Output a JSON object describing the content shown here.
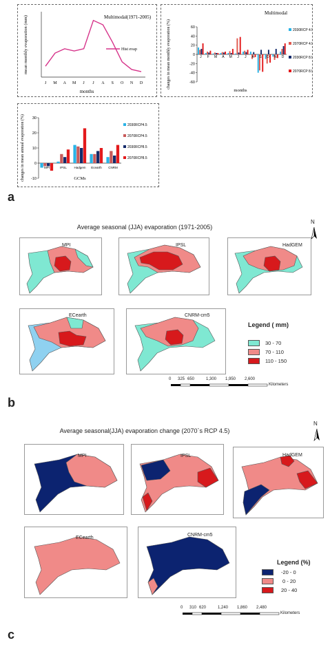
{
  "panels": {
    "a": {
      "letter": "a"
    },
    "b": {
      "letter": "b",
      "title": "Average seasonal (JJA) evaporation (1971-2005)"
    },
    "c": {
      "letter": "c",
      "title": "Average seasonal(JJA) evaporation change (2070`s RCP 4.5)"
    }
  },
  "chart_data": [
    {
      "type": "line",
      "title": "Multimodal(1971-2005)",
      "xlabel": "months",
      "ylabel": "mean monthly evaporation (mm)",
      "categories": [
        "J",
        "M",
        "A",
        "M",
        "J",
        "J",
        "A",
        "S",
        "O",
        "N",
        "D"
      ],
      "series": [
        {
          "name": "Hist evap",
          "values": [
            10,
            22,
            26,
            24,
            26,
            52,
            48,
            32,
            14,
            7,
            5
          ]
        }
      ],
      "ylim": [
        0,
        60
      ],
      "color": "#d6338a"
    },
    {
      "type": "bar",
      "title": "Multimodal",
      "xlabel": "months",
      "ylabel": "changes in mean monthly evaporation (%)",
      "yticks": [
        60,
        40,
        20,
        0,
        -20,
        -40,
        -60
      ],
      "ylim": [
        -60,
        60
      ],
      "categories": [
        "J",
        "F",
        "M",
        "A",
        "M",
        "J",
        "J",
        "A",
        "S",
        "O",
        "N",
        "D"
      ],
      "series": [
        {
          "name": "2030RCP 4.5",
          "color": "#2ab3e6",
          "values": [
            15,
            3,
            2,
            3,
            3,
            2,
            6,
            6,
            -40,
            -10,
            -5,
            6
          ]
        },
        {
          "name": "2070RCP 4.5",
          "color": "#e05a4f",
          "values": [
            10,
            6,
            4,
            5,
            7,
            35,
            8,
            -10,
            -35,
            -20,
            -12,
            12
          ]
        },
        {
          "name": "2030RCP 8.5",
          "color": "#142b6b",
          "values": [
            12,
            4,
            3,
            4,
            3,
            4,
            5,
            5,
            10,
            10,
            12,
            18
          ]
        },
        {
          "name": "2070RCP 8.5",
          "color": "#e31a1c",
          "values": [
            24,
            8,
            3,
            6,
            12,
            38,
            10,
            -6,
            -38,
            -18,
            -8,
            24
          ]
        }
      ]
    },
    {
      "type": "bar",
      "xlabel": "GCMs",
      "ylabel": "changes in mean annual evaporation (%)",
      "yticks": [
        30,
        20,
        10,
        0,
        -10
      ],
      "ylim": [
        -10,
        30
      ],
      "categories": [
        "MPI",
        "IPSL",
        "Hadgem",
        "Ecearth",
        "CNRM"
      ],
      "series": [
        {
          "name": "2030RCP4.5",
          "color": "#2ab3e6",
          "values": [
            -3,
            1,
            12,
            6,
            4
          ]
        },
        {
          "name": "2070RCP4.5",
          "color": "#c85a5a",
          "values": [
            -2,
            6,
            11,
            6,
            8
          ]
        },
        {
          "name": "2030RCP8.5",
          "color": "#142b6b",
          "values": [
            -2,
            4,
            10,
            8,
            5
          ]
        },
        {
          "name": "2070RCP8.5",
          "color": "#e31a1c",
          "values": [
            -5,
            9,
            23,
            10,
            12
          ]
        }
      ]
    }
  ],
  "maps_b": {
    "labels": [
      "MPI",
      "IPSL",
      "HadGEM",
      "ECearth",
      "CNRM-cm5"
    ],
    "legend_title": "Legend ( mm)",
    "legend": [
      {
        "label": "30 - 70",
        "color": "#7fe8d2"
      },
      {
        "label": "70 - 110",
        "color": "#f08a88"
      },
      {
        "label": "110 - 150",
        "color": "#d7191c"
      }
    ],
    "scale": [
      "0",
      "325",
      "650",
      "1,300",
      "1,950",
      "2,600"
    ],
    "scale_unit": "Kilometers",
    "north": "N"
  },
  "maps_c": {
    "labels": [
      "MPI",
      "IPSL",
      "HadGEM",
      "ECearth",
      "CNRM-cm5"
    ],
    "legend_title": "Legend (%)",
    "legend": [
      {
        "label": "-20 - 0",
        "color": "#0c2370"
      },
      {
        "label": "0 - 20",
        "color": "#f08a88"
      },
      {
        "label": "20 - 40",
        "color": "#d7191c"
      }
    ],
    "scale": [
      "0",
      "310",
      "620",
      "1,240",
      "1,860",
      "2,480"
    ],
    "scale_unit": "Kilometers",
    "north": "N"
  }
}
